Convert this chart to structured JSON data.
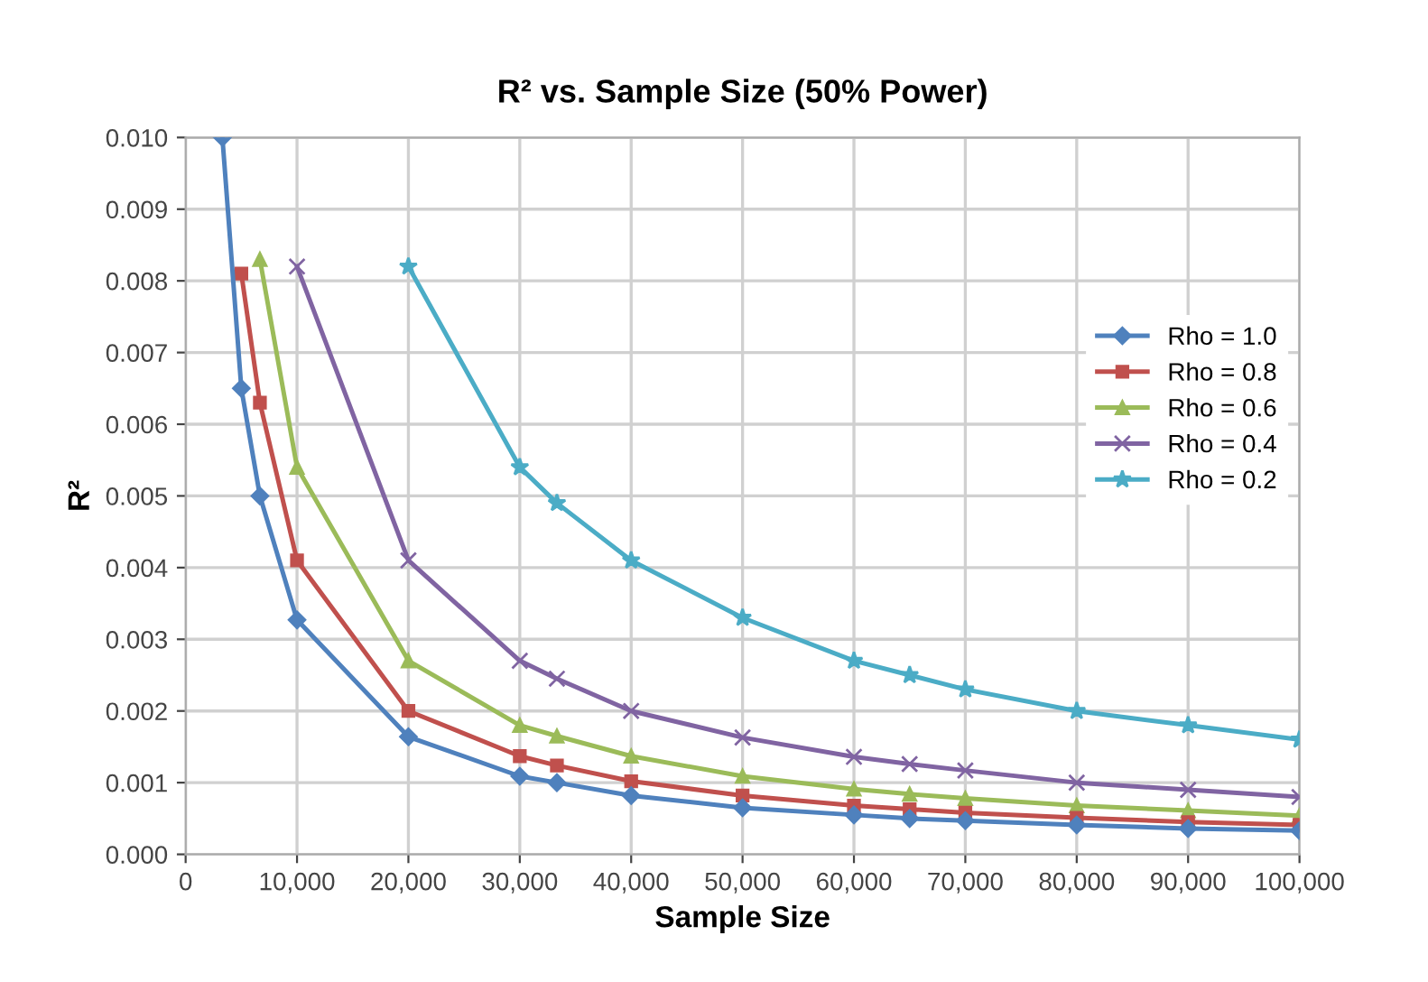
{
  "chart_data": {
    "type": "line",
    "title": "R² vs. Sample Size (50% Power)",
    "xlabel": "Sample Size",
    "ylabel": "R²",
    "xlim": [
      0,
      100000
    ],
    "ylim": [
      0,
      0.01
    ],
    "xticks": [
      0,
      {
        "value": 10000,
        "label": "10,000"
      },
      {
        "value": 20000,
        "label": "20,000"
      },
      {
        "value": 30000,
        "label": "30,000"
      },
      {
        "value": 40000,
        "label": "40,000"
      },
      {
        "value": 50000,
        "label": "50,000"
      },
      {
        "value": 60000,
        "label": "60,000"
      },
      {
        "value": 70000,
        "label": "70,000"
      },
      {
        "value": 80000,
        "label": "80,000"
      },
      {
        "value": 90000,
        "label": "90,000"
      },
      {
        "value": 100000,
        "label": "100,000"
      }
    ],
    "yticks": [
      {
        "value": 0,
        "label": "0.000"
      },
      {
        "value": 0.001,
        "label": "0.001"
      },
      {
        "value": 0.002,
        "label": "0.002"
      },
      {
        "value": 0.003,
        "label": "0.003"
      },
      {
        "value": 0.004,
        "label": "0.004"
      },
      {
        "value": 0.005,
        "label": "0.005"
      },
      {
        "value": 0.006,
        "label": "0.006"
      },
      {
        "value": 0.007,
        "label": "0.007"
      },
      {
        "value": 0.008,
        "label": "0.008"
      },
      {
        "value": 0.009,
        "label": "0.009"
      },
      {
        "value": 0.01,
        "label": "0.010"
      }
    ],
    "grid": true,
    "legend": "right",
    "series": [
      {
        "name": "Rho = 1.0",
        "color": "#4f81bd",
        "marker": "diamond",
        "x": [
          3300,
          5000,
          6667,
          10000,
          20000,
          30000,
          33333,
          40000,
          50000,
          60000,
          65000,
          70000,
          80000,
          90000,
          100000
        ],
        "values": [
          0.01,
          0.0065,
          0.005,
          0.00327,
          0.00164,
          0.00109,
          0.001,
          0.00082,
          0.00065,
          0.00055,
          0.0005,
          0.00047,
          0.00041,
          0.00036,
          0.00033
        ]
      },
      {
        "name": "Rho = 0.8",
        "color": "#c0504d",
        "marker": "square",
        "x": [
          5000,
          6667,
          10000,
          20000,
          30000,
          33333,
          40000,
          50000,
          60000,
          65000,
          70000,
          80000,
          90000,
          100000
        ],
        "values": [
          0.0081,
          0.0063,
          0.0041,
          0.002,
          0.00137,
          0.00124,
          0.00102,
          0.00082,
          0.00068,
          0.00063,
          0.00058,
          0.00051,
          0.00045,
          0.00041
        ]
      },
      {
        "name": "Rho = 0.6",
        "color": "#9bbb59",
        "marker": "triangle",
        "x": [
          6667,
          10000,
          20000,
          30000,
          33333,
          40000,
          50000,
          60000,
          65000,
          70000,
          80000,
          90000,
          100000
        ],
        "values": [
          0.0083,
          0.0054,
          0.0027,
          0.0018,
          0.00165,
          0.00137,
          0.00109,
          0.00091,
          0.00084,
          0.00078,
          0.00068,
          0.00061,
          0.00054
        ]
      },
      {
        "name": "Rho = 0.4",
        "color": "#8064a2",
        "marker": "cross",
        "x": [
          10000,
          20000,
          30000,
          33333,
          40000,
          50000,
          60000,
          65000,
          70000,
          80000,
          90000,
          100000
        ],
        "values": [
          0.0082,
          0.0041,
          0.0027,
          0.00245,
          0.002,
          0.00163,
          0.00136,
          0.00126,
          0.00117,
          0.001,
          0.0009,
          0.0008
        ]
      },
      {
        "name": "Rho = 0.2",
        "color": "#4bacc6",
        "marker": "star",
        "x": [
          20000,
          30000,
          33333,
          40000,
          50000,
          60000,
          65000,
          70000,
          80000,
          90000,
          100000
        ],
        "values": [
          0.0082,
          0.0054,
          0.0049,
          0.0041,
          0.0033,
          0.0027,
          0.0025,
          0.0023,
          0.002,
          0.0018,
          0.0016
        ]
      }
    ]
  }
}
